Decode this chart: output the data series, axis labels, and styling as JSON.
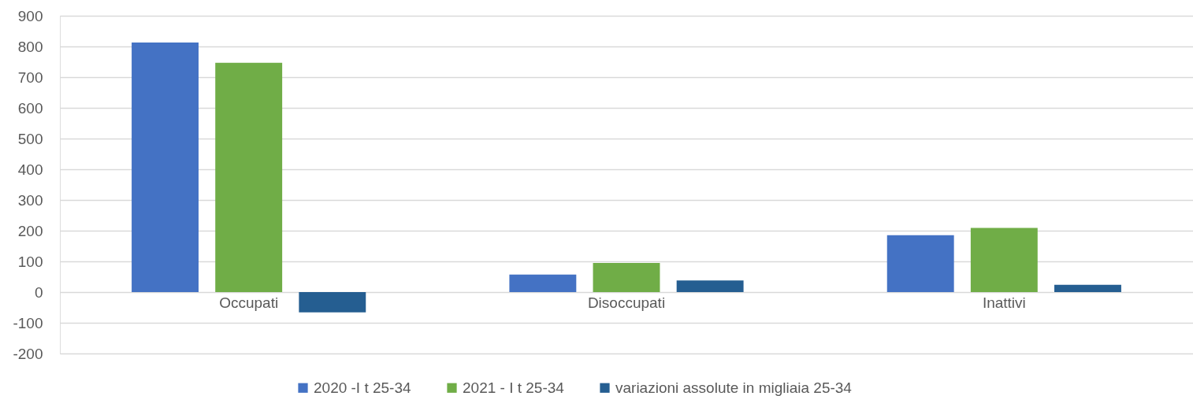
{
  "chart_data": {
    "type": "bar",
    "categories": [
      "Occupati",
      "Disoccupati",
      "Inattivi"
    ],
    "series": [
      {
        "name": "2020 -I t 25-34",
        "color": "#4472c4",
        "values": [
          813,
          57,
          185
        ]
      },
      {
        "name": "2021 - I t 25-34",
        "color": "#70ad47",
        "values": [
          747,
          95,
          209
        ]
      },
      {
        "name": "variazioni assolute in migliaia 25-34",
        "color": "#255e91",
        "values": [
          -66,
          38,
          24
        ]
      }
    ],
    "ylim": [
      -200,
      900
    ],
    "yticks": [
      -200,
      -100,
      0,
      100,
      200,
      300,
      400,
      500,
      600,
      700,
      800,
      900
    ],
    "grid": "y",
    "legend": "bottom"
  }
}
